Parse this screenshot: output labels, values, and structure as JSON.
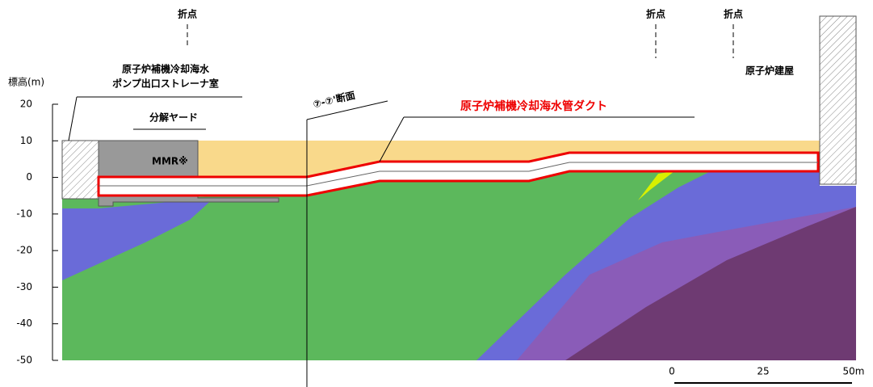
{
  "break_points": [
    "折点",
    "折点",
    "折点"
  ],
  "labels": {
    "strainer_room": [
      "原子炉補機冷却海水",
      "ポンプ出口ストレーナ室"
    ],
    "disassembly_yard": "分解ヤード",
    "mmr": "MMR※",
    "section": "⑦-⑦'断面",
    "duct": "原子炉補機冷却海水管ダクト",
    "reactor_building": "原子炉建屋"
  },
  "axis": {
    "label": "標高(m)",
    "ylim": [
      -50,
      20
    ],
    "yticks": [
      20,
      10,
      0,
      -10,
      -20,
      -30,
      -40,
      -50
    ]
  },
  "scale_bar": [
    "0",
    "25",
    "50m"
  ]
}
